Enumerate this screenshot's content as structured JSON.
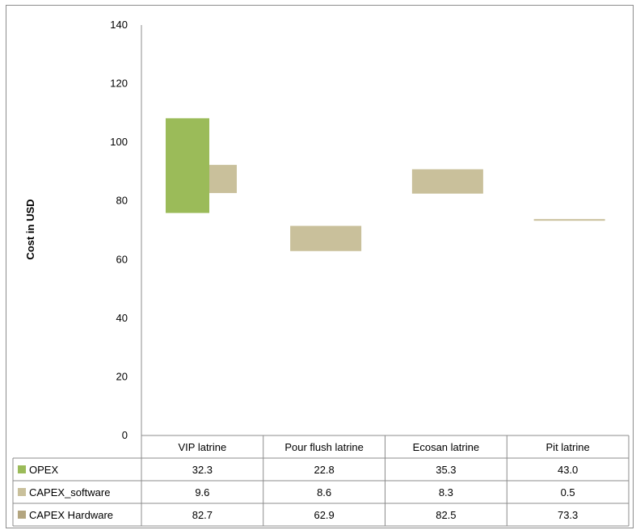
{
  "chart_data": {
    "type": "table",
    "ylabel": "Cost in USD",
    "ylim": [
      0,
      140
    ],
    "yticks": [
      "0",
      "20",
      "40",
      "60",
      "80",
      "100",
      "120",
      "140"
    ],
    "categories": [
      "VIP latrine",
      "Pour flush latrine",
      "Ecosan latrine",
      "Pit latrine"
    ],
    "series": [
      {
        "name": "OPEX",
        "color": "#9bbb59",
        "values": [
          32.3,
          22.8,
          35.3,
          43.0
        ],
        "labels": [
          "32.3",
          "22.8",
          "35.3",
          "43.0"
        ],
        "visible_floating": [
          true,
          false,
          false,
          false
        ]
      },
      {
        "name": "CAPEX_software",
        "color": "#c9c09b",
        "values": [
          9.6,
          8.6,
          8.3,
          0.5
        ],
        "labels": [
          "9.6",
          "8.6",
          "8.3",
          "0.5"
        ],
        "visible_floating": [
          true,
          true,
          true,
          true
        ]
      },
      {
        "name": "CAPEX Hardware",
        "color": "#b3a57f",
        "values": [
          82.7,
          62.9,
          82.5,
          73.3
        ],
        "labels": [
          "82.7",
          "62.9",
          "82.5",
          "73.3"
        ],
        "visible_floating": [
          false,
          false,
          false,
          false
        ]
      }
    ],
    "grid": false,
    "legend": "data-table"
  }
}
